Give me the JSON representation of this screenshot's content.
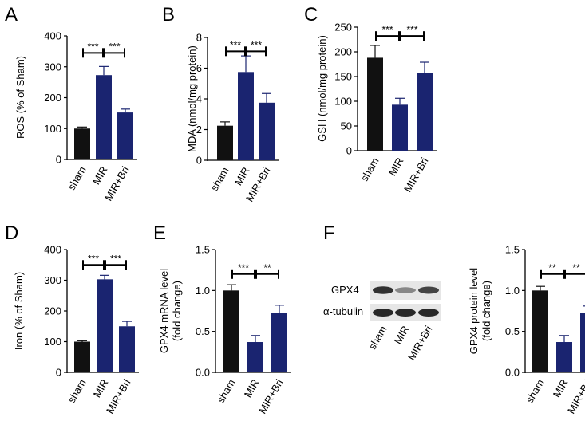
{
  "colors": {
    "sham": "#111111",
    "treated": "#1a2470",
    "axis": "#000000"
  },
  "chart_data": [
    {
      "panel": "A",
      "type": "bar",
      "categories": [
        "sham",
        "MIR",
        "MIR+Bri"
      ],
      "values": [
        100,
        273,
        152
      ],
      "errors": [
        5,
        28,
        11
      ],
      "ylabel": "ROS (% of Sham)",
      "ylim": [
        0,
        400
      ],
      "yticks": [
        0,
        100,
        200,
        300,
        400
      ],
      "tick_labels": [
        "0",
        "100",
        "200",
        "300",
        "400"
      ],
      "significance": [
        {
          "from": 0,
          "to": 1,
          "label": "***",
          "y": 345
        },
        {
          "from": 1,
          "to": 2,
          "label": "***",
          "y": 345
        }
      ]
    },
    {
      "panel": "B",
      "type": "bar",
      "categories": [
        "sham",
        "MIR",
        "MIR+Bri"
      ],
      "values": [
        2.25,
        5.75,
        3.75
      ],
      "errors": [
        0.25,
        1.05,
        0.6
      ],
      "ylabel": "MDA (nmol/mg protein)",
      "ylim": [
        0,
        8
      ],
      "yticks": [
        0,
        2,
        4,
        6,
        8
      ],
      "tick_labels": [
        "0",
        "2",
        "4",
        "6",
        "8"
      ],
      "significance": [
        {
          "from": 0,
          "to": 1,
          "label": "***",
          "y": 7.1
        },
        {
          "from": 1,
          "to": 2,
          "label": "***",
          "y": 7.1
        }
      ]
    },
    {
      "panel": "C",
      "type": "bar",
      "categories": [
        "sham",
        "MIR",
        "MIR+Bri"
      ],
      "values": [
        188,
        93,
        157
      ],
      "errors": [
        25,
        13,
        22
      ],
      "ylabel": "GSH (nmol/mg protein)",
      "ylim": [
        0,
        250
      ],
      "yticks": [
        0,
        50,
        100,
        150,
        200,
        250
      ],
      "tick_labels": [
        "0",
        "50",
        "100",
        "150",
        "200",
        "250"
      ],
      "significance": [
        {
          "from": 0,
          "to": 1,
          "label": "***",
          "y": 232
        },
        {
          "from": 1,
          "to": 2,
          "label": "***",
          "y": 232
        }
      ]
    },
    {
      "panel": "D",
      "type": "bar",
      "categories": [
        "sham",
        "MIR",
        "MIR+Bri"
      ],
      "values": [
        100,
        303,
        150
      ],
      "errors": [
        3,
        13,
        16
      ],
      "ylabel": "Iron (% of Sham)",
      "ylim": [
        0,
        400
      ],
      "yticks": [
        0,
        100,
        200,
        300,
        400
      ],
      "tick_labels": [
        "0",
        "100",
        "200",
        "300",
        "400"
      ],
      "significance": [
        {
          "from": 0,
          "to": 1,
          "label": "***",
          "y": 350
        },
        {
          "from": 1,
          "to": 2,
          "label": "***",
          "y": 350
        }
      ]
    },
    {
      "panel": "E",
      "type": "bar",
      "categories": [
        "sham",
        "MIR",
        "MIR+Bri"
      ],
      "values": [
        1.0,
        0.37,
        0.73
      ],
      "errors": [
        0.07,
        0.08,
        0.09
      ],
      "ylabel": "GPX4 mRNA level (fold change)",
      "ylim": [
        0,
        1.5
      ],
      "yticks": [
        0,
        0.5,
        1.0,
        1.5
      ],
      "tick_labels": [
        "0.0",
        "0.5",
        "1.0",
        "1.5"
      ],
      "significance": [
        {
          "from": 0,
          "to": 1,
          "label": "***",
          "y": 1.2
        },
        {
          "from": 1,
          "to": 2,
          "label": "**",
          "y": 1.2
        }
      ]
    },
    {
      "panel": "F",
      "type": "bar",
      "categories": [
        "sham",
        "MIR",
        "MIR+Bri"
      ],
      "values": [
        1.0,
        0.37,
        0.73
      ],
      "errors": [
        0.05,
        0.08,
        0.08
      ],
      "ylabel": "GPX4 protein level (fold change)",
      "ylim": [
        0,
        1.5
      ],
      "yticks": [
        0,
        0.5,
        1.0,
        1.5
      ],
      "tick_labels": [
        "0.0",
        "0.5",
        "1.0",
        "1.5"
      ],
      "significance": [
        {
          "from": 0,
          "to": 1,
          "label": "**",
          "y": 1.2
        },
        {
          "from": 1,
          "to": 2,
          "label": "**",
          "y": 1.2
        }
      ]
    }
  ],
  "blot": {
    "rows": [
      "GPX4",
      "α-tubulin"
    ],
    "lanes": [
      "sham",
      "MIR",
      "MIR+Bri"
    ],
    "band_intensity": [
      [
        0.9,
        0.45,
        0.8
      ],
      [
        0.95,
        0.95,
        0.95
      ]
    ]
  }
}
